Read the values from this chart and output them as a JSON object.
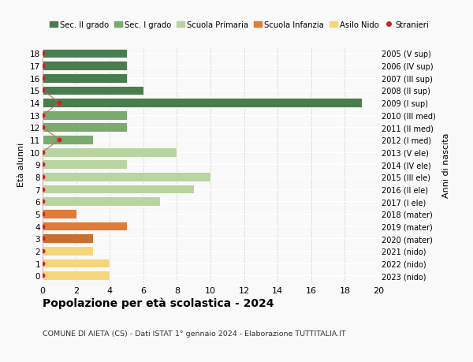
{
  "ages": [
    18,
    17,
    16,
    15,
    14,
    13,
    12,
    11,
    10,
    9,
    8,
    7,
    6,
    5,
    4,
    3,
    2,
    1,
    0
  ],
  "years": [
    "2005 (V sup)",
    "2006 (IV sup)",
    "2007 (III sup)",
    "2008 (II sup)",
    "2009 (I sup)",
    "2010 (III med)",
    "2011 (II med)",
    "2012 (I med)",
    "2013 (V ele)",
    "2014 (IV ele)",
    "2015 (III ele)",
    "2016 (II ele)",
    "2017 (I ele)",
    "2018 (mater)",
    "2019 (mater)",
    "2020 (mater)",
    "2021 (nido)",
    "2022 (nido)",
    "2023 (nido)"
  ],
  "bar_values": [
    5,
    5,
    5,
    6,
    19,
    5,
    5,
    3,
    8,
    5,
    10,
    9,
    7,
    2,
    5,
    3,
    3,
    4,
    4
  ],
  "bar_colors": [
    "#4a7c4e",
    "#4a7c4e",
    "#4a7c4e",
    "#4a7c4e",
    "#4a7c4e",
    "#7aab6e",
    "#7aab6e",
    "#7aab6e",
    "#b8d4a0",
    "#b8d4a0",
    "#b8d4a0",
    "#b8d4a0",
    "#b8d4a0",
    "#e07b3a",
    "#e07b3a",
    "#c97030",
    "#f5d67a",
    "#f5d67a",
    "#f5d67a"
  ],
  "stranieri_x": {
    "18": 0,
    "17": 0,
    "16": 0,
    "15": 0,
    "14": 1,
    "13": 0,
    "12": 0,
    "11": 1,
    "10": 0,
    "9": 0,
    "8": 0,
    "7": 0,
    "6": 0,
    "5": 0,
    "4": 0,
    "3": 0,
    "2": 0,
    "1": 0,
    "0": 0
  },
  "legend_labels": [
    "Sec. II grado",
    "Sec. I grado",
    "Scuola Primaria",
    "Scuola Infanzia",
    "Asilo Nido",
    "Stranieri"
  ],
  "legend_colors": [
    "#4a7c4e",
    "#7aab6e",
    "#b8d4a0",
    "#e07b3a",
    "#f5d67a",
    "#cc2222"
  ],
  "title": "Popolazione per età scolastica - 2024",
  "subtitle": "COMUNE DI AIETA (CS) - Dati ISTAT 1° gennaio 2024 - Elaborazione TUTTITALIA.IT",
  "ylabel_left": "Età alunni",
  "ylabel_right": "Anni di nascita",
  "xlim": [
    0,
    20
  ],
  "xticks": [
    0,
    2,
    4,
    6,
    8,
    10,
    12,
    14,
    16,
    18,
    20
  ],
  "bg_color": "#f9f9f9",
  "grid_color": "#cccccc",
  "bar_height": 0.75,
  "stranieri_color": "#cc2222",
  "stranieri_line_color": "#c86060"
}
